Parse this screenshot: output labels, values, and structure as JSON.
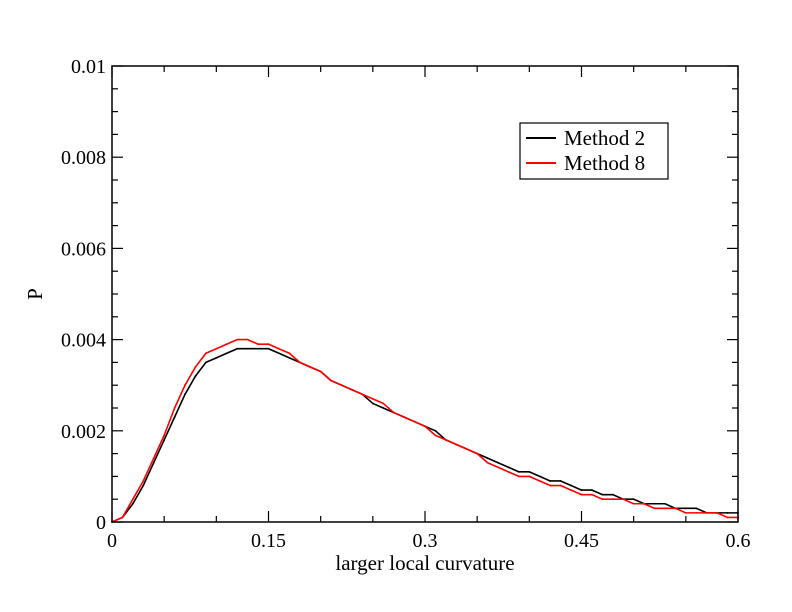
{
  "chart_data": {
    "type": "line",
    "title": "",
    "xlabel": "larger local curvature",
    "ylabel": "P",
    "xlim": [
      0,
      0.6
    ],
    "ylim": [
      0,
      0.01
    ],
    "x_ticks": [
      0,
      0.15,
      0.3,
      0.45,
      0.6
    ],
    "x_tick_labels": [
      "0",
      "0.15",
      "0.3",
      "0.45",
      "0.6"
    ],
    "y_ticks": [
      0,
      0.002,
      0.004,
      0.006,
      0.008,
      0.01
    ],
    "y_tick_labels": [
      "0",
      "0.002",
      "0.004",
      "0.006",
      "0.008",
      "0.01"
    ],
    "grid": false,
    "legend_position": "top-right",
    "series": [
      {
        "name": "Method 2",
        "color": "#000000",
        "x": [
          0,
          0.01,
          0.02,
          0.03,
          0.04,
          0.05,
          0.06,
          0.07,
          0.08,
          0.09,
          0.1,
          0.11,
          0.12,
          0.13,
          0.14,
          0.15,
          0.16,
          0.17,
          0.18,
          0.19,
          0.2,
          0.21,
          0.22,
          0.23,
          0.24,
          0.25,
          0.26,
          0.27,
          0.28,
          0.29,
          0.3,
          0.31,
          0.32,
          0.33,
          0.34,
          0.35,
          0.36,
          0.37,
          0.38,
          0.39,
          0.4,
          0.41,
          0.42,
          0.43,
          0.44,
          0.45,
          0.46,
          0.47,
          0.48,
          0.49,
          0.5,
          0.51,
          0.52,
          0.53,
          0.54,
          0.55,
          0.56,
          0.57,
          0.58,
          0.59,
          0.6
        ],
        "y": [
          0,
          0.0001,
          0.0004,
          0.0008,
          0.0013,
          0.0018,
          0.0023,
          0.0028,
          0.0032,
          0.0035,
          0.0036,
          0.0037,
          0.0038,
          0.0038,
          0.0038,
          0.0038,
          0.0037,
          0.0036,
          0.0035,
          0.0034,
          0.0033,
          0.0031,
          0.003,
          0.0029,
          0.0028,
          0.0026,
          0.0025,
          0.0024,
          0.0023,
          0.0022,
          0.0021,
          0.002,
          0.0018,
          0.0017,
          0.0016,
          0.0015,
          0.0014,
          0.0013,
          0.0012,
          0.0011,
          0.0011,
          0.001,
          0.0009,
          0.0009,
          0.0008,
          0.0007,
          0.0007,
          0.0006,
          0.0006,
          0.0005,
          0.0005,
          0.0004,
          0.0004,
          0.0004,
          0.0003,
          0.0003,
          0.0003,
          0.0002,
          0.0002,
          0.0002,
          0.0002
        ]
      },
      {
        "name": "Method 8",
        "color": "#ff0000",
        "x": [
          0,
          0.01,
          0.02,
          0.03,
          0.04,
          0.05,
          0.06,
          0.07,
          0.08,
          0.09,
          0.1,
          0.11,
          0.12,
          0.13,
          0.14,
          0.15,
          0.16,
          0.17,
          0.18,
          0.19,
          0.2,
          0.21,
          0.22,
          0.23,
          0.24,
          0.25,
          0.26,
          0.27,
          0.28,
          0.29,
          0.3,
          0.31,
          0.32,
          0.33,
          0.34,
          0.35,
          0.36,
          0.37,
          0.38,
          0.39,
          0.4,
          0.41,
          0.42,
          0.43,
          0.44,
          0.45,
          0.46,
          0.47,
          0.48,
          0.49,
          0.5,
          0.51,
          0.52,
          0.53,
          0.54,
          0.55,
          0.56,
          0.57,
          0.58,
          0.59,
          0.6
        ],
        "y": [
          0,
          0.0001,
          0.0005,
          0.0009,
          0.0014,
          0.0019,
          0.0025,
          0.003,
          0.0034,
          0.0037,
          0.0038,
          0.0039,
          0.004,
          0.004,
          0.0039,
          0.0039,
          0.0038,
          0.0037,
          0.0035,
          0.0034,
          0.0033,
          0.0031,
          0.003,
          0.0029,
          0.0028,
          0.0027,
          0.0026,
          0.0024,
          0.0023,
          0.0022,
          0.0021,
          0.0019,
          0.0018,
          0.0017,
          0.0016,
          0.0015,
          0.0013,
          0.0012,
          0.0011,
          0.001,
          0.001,
          0.0009,
          0.0008,
          0.0008,
          0.0007,
          0.0006,
          0.0006,
          0.0005,
          0.0005,
          0.0005,
          0.0004,
          0.0004,
          0.0003,
          0.0003,
          0.0003,
          0.0002,
          0.0002,
          0.0002,
          0.0002,
          0.0001,
          0.0001
        ]
      }
    ]
  }
}
